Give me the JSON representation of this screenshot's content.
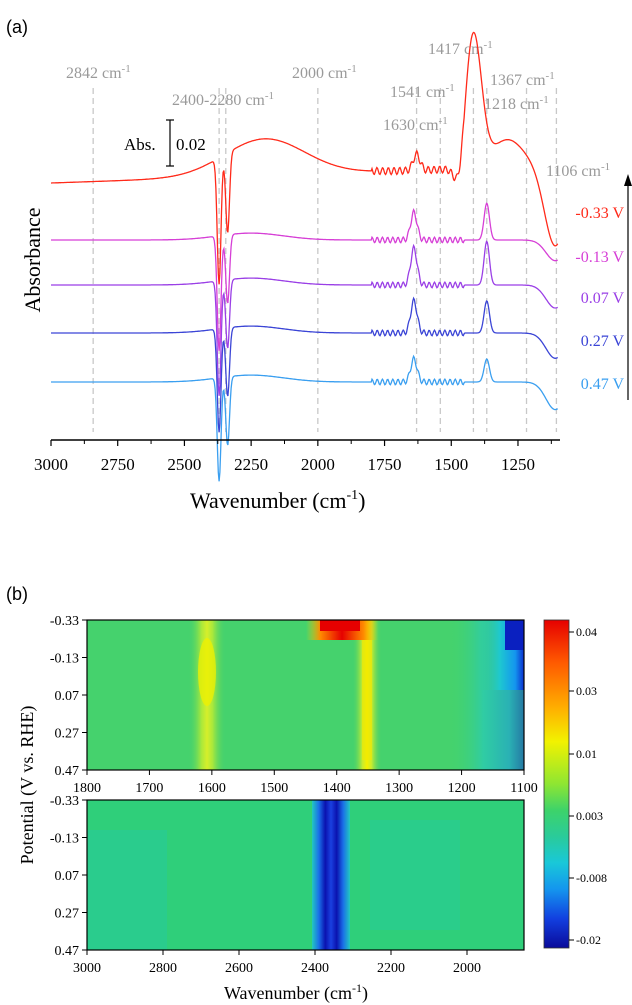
{
  "panel_a": {
    "label": "(a)",
    "ylabel": "Absorbance",
    "xlabel_main": "Wavenumber (cm",
    "xlabel_sup": "-1",
    "xlabel_end": ")",
    "scale_label": "Abs.",
    "scale_value": "0.02"
  },
  "panel_b": {
    "label": "(b)",
    "ylabel": "Potential (V vs. RHE)",
    "xlabel_main": "Wavenumber (cm",
    "xlabel_sup": "-1",
    "xlabel_end": ")"
  },
  "colors": {
    "curve_-0.33": "#ff2a1a",
    "curve_-0.13": "#d63fd6",
    "curve_0.07": "#9a3fe6",
    "curve_0.27": "#3b45d6",
    "curve_0.47": "#3a9ff0",
    "peak_line": "#c8c8c8",
    "peak_text": "#9a9a9a"
  },
  "chart_data": [
    {
      "type": "line",
      "title": "",
      "xlabel": "Wavenumber (cm-1)",
      "ylabel": "Absorbance",
      "xlim": [
        3000,
        1100
      ],
      "x_ticks": [
        3000,
        2750,
        2500,
        2250,
        2000,
        1750,
        1500,
        1250
      ],
      "scale_bar": "Abs. 0.02",
      "peak_annotations": [
        {
          "wavenumber": 2842,
          "label": "2842 cm-1"
        },
        {
          "wavenumber": 2340,
          "label": "2400-2280 cm-1"
        },
        {
          "wavenumber": 2000,
          "label": "2000 cm-1"
        },
        {
          "wavenumber": 1630,
          "label": "1630 cm-1"
        },
        {
          "wavenumber": 1541,
          "label": "1541 cm-1"
        },
        {
          "wavenumber": 1417,
          "label": "1417 cm-1"
        },
        {
          "wavenumber": 1367,
          "label": "1367 cm-1"
        },
        {
          "wavenumber": 1218,
          "label": "1218 cm-1"
        },
        {
          "wavenumber": 1106,
          "label": "1106 cm-1"
        }
      ],
      "series": [
        {
          "name": "-0.33 V",
          "features": {
            "2360": -0.055,
            "1630": 0.01,
            "1417": 0.06,
            "1367": 0.0
          }
        },
        {
          "name": "-0.13 V",
          "features": {
            "2360": -0.05,
            "1630": 0.012,
            "1367": 0.016
          }
        },
        {
          "name": "0.07 V",
          "features": {
            "2360": -0.05,
            "1630": 0.016,
            "1367": 0.019
          }
        },
        {
          "name": "0.27 V",
          "features": {
            "2360": -0.045,
            "1630": 0.014,
            "1367": 0.014
          }
        },
        {
          "name": "0.47 V",
          "features": {
            "2360": -0.045,
            "1630": 0.01,
            "1367": 0.01
          }
        }
      ]
    },
    {
      "type": "heatmap",
      "title": "",
      "ylabel": "Potential (V vs. RHE)",
      "xlim": [
        1800,
        1100
      ],
      "x_ticks": [
        1800,
        1700,
        1600,
        1500,
        1400,
        1300,
        1200,
        1100
      ],
      "y_ticks": [
        "-0.33",
        "-0.13",
        "0.07",
        "0.27",
        "0.47"
      ]
    },
    {
      "type": "heatmap",
      "title": "",
      "xlabel": "Wavenumber (cm-1)",
      "ylabel": "Potential (V vs. RHE)",
      "xlim": [
        3000,
        1850
      ],
      "x_ticks": [
        3000,
        2800,
        2600,
        2400,
        2200,
        2000
      ],
      "y_ticks": [
        "-0.33",
        "-0.13",
        "0.07",
        "0.27",
        "0.47"
      ]
    },
    {
      "type": "colorbar",
      "ticks": [
        "0.04",
        "0.03",
        "0.01",
        "0.003",
        "-0.008",
        "-0.02"
      ]
    }
  ]
}
